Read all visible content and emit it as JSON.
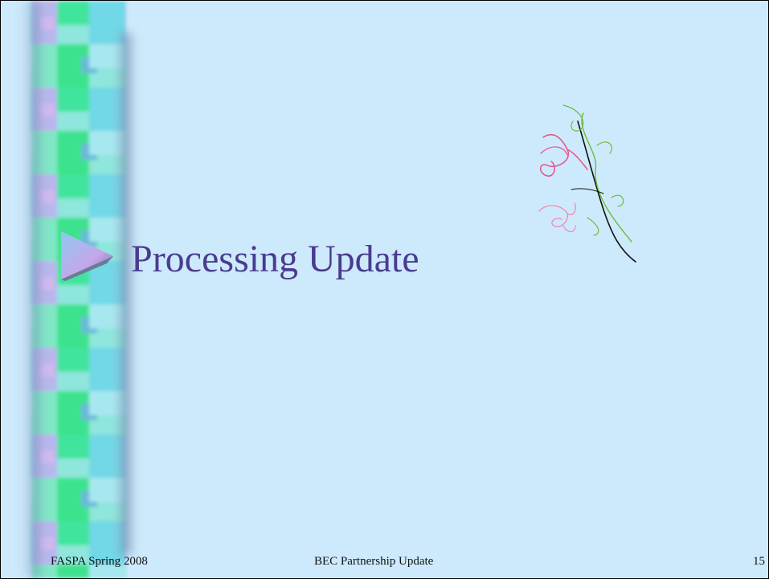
{
  "slide": {
    "title": "Processing Update",
    "footer": {
      "left": "FASPA Spring 2008",
      "center": "BEC Partnership Update",
      "page_number": "15"
    }
  }
}
